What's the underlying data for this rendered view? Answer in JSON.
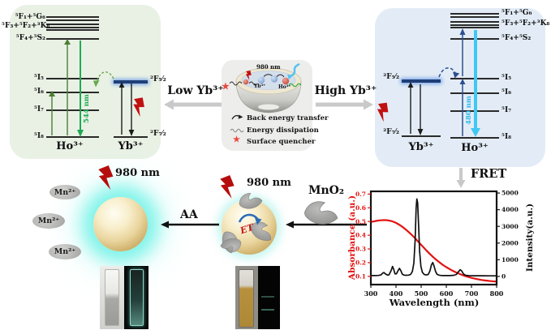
{
  "icons": {
    "star": "★"
  },
  "colors": {
    "panel_green": "#e9f1e5",
    "panel_blue": "#e3ecf6",
    "panel_gray": "#ededec",
    "emission_green": "#1caa53",
    "emission_cyan": "#29b9ef",
    "absorbance_red": "#e31212",
    "intensity_black": "#101010",
    "bolt_red": "#c01010",
    "gray_arrow": "#c9c9c9"
  },
  "panels": {
    "low_yb": {
      "ho": "Ho³⁺",
      "yb": "Yb³⁺",
      "levels": {
        "f1g6": "⁵F₁+⁵G₆",
        "f3f2k8": "⁵F₃+⁵F₂+³K₈",
        "f4s2": "⁵F₄+⁵S₂",
        "i5": "⁵I₅",
        "i6": "⁵I₆",
        "i7": "⁵I₇",
        "i8": "⁵I₈",
        "f52": "²F₅⁄₂",
        "f72": "²F₇⁄₂"
      },
      "emission_label": "544 nm"
    },
    "high_yb": {
      "ho": "Ho³⁺",
      "yb": "Yb³⁺",
      "levels": {
        "f1g6": "⁵F₁+⁵G₆",
        "f3f2k8": "⁵F₃+⁵F₂+³K₈",
        "f4s2": "⁵F₄+⁵S₂",
        "i5": "⁵I₅",
        "i6": "⁵I₆",
        "i7": "⁵I₇",
        "i8": "⁵I₈",
        "f52": "²F₅⁄₂",
        "f72": "²F₇⁄₂"
      },
      "emission_label": "480 nm"
    },
    "center": {
      "laser": "980 nm",
      "yb": "Yb³⁺",
      "ho": "Ho³⁺",
      "legend": [
        {
          "label": "Back energy transfer"
        },
        {
          "label": "Energy dissipation"
        },
        {
          "label": "Surface quencher"
        }
      ]
    }
  },
  "labels": {
    "low": "Low Yb³⁺",
    "high": "High Yb³⁺",
    "fret": "FRET",
    "aa": "AA",
    "mno2": "MnO₂",
    "et": "ET"
  },
  "bottom": {
    "laser_left": "980 nm",
    "laser_mid": "980 nm",
    "mn_ions": [
      "Mn²⁺",
      "Mn²⁺",
      "Mn²⁺"
    ]
  },
  "chart_data": {
    "type": "line",
    "xlabel": "Wavelength (nm)",
    "ylabel_left": "Absorbance (a.u.)",
    "ylabel_right": "Intensity(a.u.)",
    "x_range": [
      300,
      800
    ],
    "left_range": [
      0.04,
      0.72
    ],
    "right_range": [
      -490,
      5100
    ],
    "x_ticks": [
      "300",
      "400",
      "500",
      "600",
      "700",
      "800"
    ],
    "left_ticks": [
      "0.1",
      "0.2",
      "0.3",
      "0.4",
      "0.5",
      "0.6",
      "0.7"
    ],
    "right_ticks": [
      "0",
      "1000",
      "2000",
      "3000",
      "4000",
      "5000"
    ],
    "grid": false,
    "series": [
      {
        "name": "absorbance",
        "axis": "left",
        "color": "#e31212",
        "width": 2.2,
        "x": [
          300,
          310,
          320,
          330,
          340,
          350,
          360,
          370,
          380,
          390,
          400,
          410,
          420,
          430,
          440,
          450,
          460,
          470,
          480,
          490,
          500,
          510,
          520,
          530,
          540,
          550,
          560,
          570,
          580,
          590,
          600,
          620,
          640,
          660,
          680,
          700,
          720,
          740,
          760,
          780,
          800
        ],
        "y": [
          0.497,
          0.5,
          0.504,
          0.507,
          0.509,
          0.51,
          0.51,
          0.508,
          0.504,
          0.498,
          0.49,
          0.48,
          0.468,
          0.455,
          0.44,
          0.424,
          0.407,
          0.389,
          0.37,
          0.35,
          0.33,
          0.31,
          0.291,
          0.272,
          0.254,
          0.237,
          0.221,
          0.206,
          0.192,
          0.179,
          0.167,
          0.146,
          0.128,
          0.112,
          0.099,
          0.089,
          0.081,
          0.074,
          0.069,
          0.065,
          0.062
        ]
      },
      {
        "name": "emission",
        "axis": "right",
        "color": "#101010",
        "width": 1.7,
        "x": [
          300,
          315,
          330,
          340,
          347,
          352,
          357,
          365,
          372,
          380,
          386,
          391,
          396,
          402,
          408,
          414,
          419,
          425,
          432,
          440,
          450,
          458,
          465,
          471,
          476,
          480,
          483,
          486,
          490,
          494,
          499,
          505,
          512,
          520,
          528,
          535,
          541,
          546,
          551,
          557,
          563,
          570,
          580,
          590,
          600,
          615,
          630,
          640,
          648,
          655,
          661,
          668,
          676,
          690,
          710,
          740,
          770,
          800
        ],
        "y": [
          55,
          50,
          60,
          90,
          200,
          235,
          160,
          90,
          95,
          330,
          600,
          420,
          150,
          160,
          340,
          480,
          350,
          130,
          80,
          70,
          80,
          120,
          300,
          800,
          2200,
          4100,
          4650,
          4400,
          3000,
          1500,
          600,
          250,
          120,
          90,
          120,
          320,
          700,
          830,
          640,
          300,
          130,
          80,
          55,
          50,
          50,
          50,
          70,
          120,
          280,
          400,
          330,
          150,
          70,
          45,
          40,
          38,
          36,
          35
        ]
      }
    ]
  }
}
